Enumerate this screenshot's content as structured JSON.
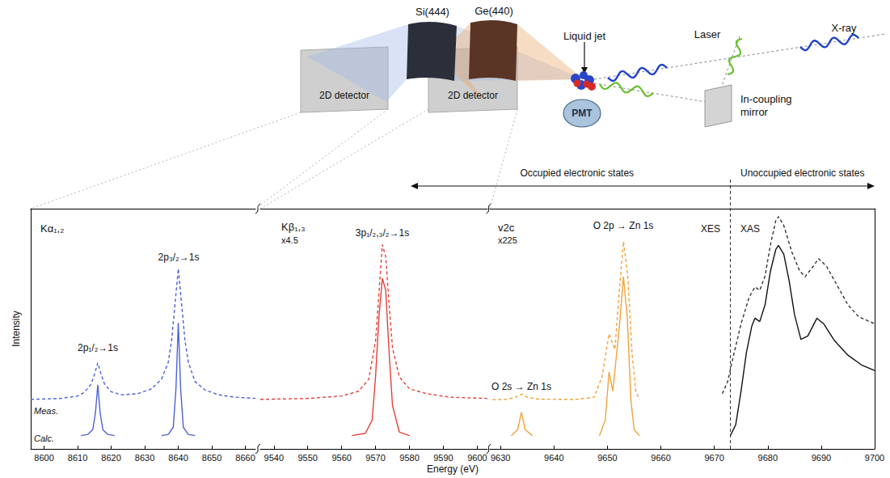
{
  "diagram": {
    "crystals": [
      "Si(444)",
      "Ge(440)"
    ],
    "detectors": [
      "2D detector",
      "2D detector"
    ],
    "sample": "Liquid jet",
    "laser": "Laser",
    "xray": "X-ray",
    "mirror": "In-coupling mirror",
    "pmt": "PMT"
  },
  "chart_data": [
    {
      "type": "line",
      "title": "Kα₁,₂",
      "ylabel": "Intensity",
      "xlim": [
        8596,
        8663
      ],
      "xticks": [
        8600,
        8610,
        8620,
        8630,
        8640,
        8650,
        8660
      ],
      "ylim": [
        0,
        100
      ],
      "yticks": [],
      "tick_labels": "x",
      "grid": false,
      "annotations": [
        "2p₁/₂→1s",
        "2p₃/₂→1s"
      ],
      "series": [
        {
          "name": "Meas.",
          "color": "#4b62d6",
          "line_style": "dashed",
          "x": [
            8596,
            8605,
            8610,
            8612,
            8614,
            8615,
            8616,
            8617,
            8618,
            8620,
            8623,
            8628,
            8632,
            8635,
            8637,
            8638,
            8639,
            8640,
            8641,
            8642,
            8643,
            8645,
            8648,
            8652,
            8657,
            8663
          ],
          "values": [
            20.6,
            21,
            22,
            23.5,
            27,
            31,
            35.8,
            31,
            27,
            23.8,
            22.5,
            23,
            25,
            29,
            36,
            45,
            60,
            75,
            60,
            45,
            36,
            28,
            24.5,
            22.5,
            21.5,
            21
          ]
        },
        {
          "name": "Calc.",
          "color": "#4b62d6",
          "line_style": "solid",
          "x": [
            8611,
            8613,
            8614.5,
            8615.3,
            8616,
            8616.7,
            8617.5,
            8619,
            8621,
            8628,
            8635,
            8637,
            8638.5,
            8639.3,
            8640,
            8640.7,
            8641.5,
            8643,
            8645
          ],
          "values": [
            5.5,
            6,
            8,
            15,
            26.7,
            15,
            8,
            6,
            5.5,
            null,
            5.5,
            6,
            9,
            25,
            52.4,
            25,
            9,
            6,
            5.5
          ]
        }
      ]
    },
    {
      "type": "line",
      "title": "Kβ₁,₃",
      "subtitle": "x4.5",
      "xlabel": "Energy (eV)",
      "xlim": [
        9536,
        9603
      ],
      "xticks": [
        9540,
        9550,
        9560,
        9570,
        9580,
        9590,
        9600
      ],
      "ylim": [
        0,
        100
      ],
      "yticks": [],
      "tick_labels": "x",
      "grid": false,
      "annotations": [
        "3p₁/₂,₃/₂→1s"
      ],
      "series": [
        {
          "color": "#e5403a",
          "line_style": "dashed",
          "x": [
            9536,
            9550,
            9560,
            9565,
            9568,
            9570,
            9571,
            9572,
            9573,
            9574,
            9575,
            9577,
            9580,
            9585,
            9592,
            9603
          ],
          "values": [
            20.6,
            21,
            22,
            24,
            29,
            45,
            65,
            85,
            80,
            60,
            42,
            30,
            25,
            23,
            21.5,
            21
          ]
        },
        {
          "color": "#e5403a",
          "line_style": "solid",
          "x": [
            9563,
            9567,
            9569,
            9570,
            9571,
            9572,
            9573,
            9574,
            9575,
            9577,
            9580
          ],
          "values": [
            5.5,
            6.5,
            12,
            30,
            55,
            71,
            66,
            40,
            18,
            7,
            5.5
          ]
        }
      ]
    },
    {
      "type": "line",
      "title": "v2c",
      "subtitle": "x225",
      "xlim": [
        9628,
        9700
      ],
      "xticks": [
        9630,
        9640,
        9650,
        9660,
        9670,
        9680,
        9690,
        9700
      ],
      "ylim": [
        0,
        100
      ],
      "yticks": [],
      "tick_labels": "x",
      "grid": false,
      "annotations": [
        "O 2p → Zn 1s",
        "O 2s → Zn 1s",
        "XES",
        "XAS"
      ],
      "divider": 9673,
      "divider_labels": [
        "Occupied electronic states",
        "Unoccupied electronic states"
      ],
      "series": [
        {
          "color": "#f2a33a",
          "line_style": "dashed",
          "x": [
            9628.5,
            9631,
            9632.8,
            9633.9,
            9635,
            9637,
            9644,
            9647.5,
            9649,
            9650.3,
            9651.4,
            9652.3,
            9653,
            9653.8,
            9654.6,
            9655.3,
            9656
          ],
          "values": [
            20.5,
            20.6,
            21.5,
            22.8,
            21.5,
            20.7,
            20.6,
            21.5,
            30,
            47.9,
            41.4,
            68,
            86.3,
            72,
            40,
            24,
            20.5
          ]
        },
        {
          "color": "#f2a33a",
          "line_style": "solid",
          "x": [
            9632,
            9633.2,
            9633.9,
            9634.6,
            9636,
            9642,
            9648.5,
            9649.6,
            9650.3,
            9651,
            9652.2,
            9653,
            9653.7,
            9654.4,
            9655,
            9656
          ],
          "values": [
            5.5,
            8,
            15.3,
            8,
            5.5,
            null,
            5.5,
            12,
            32,
            24,
            50,
            71.7,
            55,
            20,
            8,
            5.5
          ]
        },
        {
          "color": "#333333",
          "line_style": "dashed",
          "x": [
            9671.5,
            9672.5,
            9673.5,
            9675,
            9676.5,
            9677.6,
            9678.5,
            9679.5,
            9680.5,
            9681.5,
            9682,
            9683,
            9684.5,
            9686,
            9687,
            9688.5,
            9689.5,
            9691,
            9693,
            9695,
            9697,
            9700
          ],
          "values": [
            23,
            28,
            38,
            52,
            63,
            67.4,
            66,
            72,
            85,
            95,
            96.7,
            93,
            82,
            74,
            71.7,
            76,
            79.2,
            76,
            68,
            60,
            55,
            52.1
          ]
        },
        {
          "color": "#111111",
          "line_style": "solid",
          "x": [
            9673,
            9674,
            9675,
            9676,
            9677,
            9677.6,
            9678.5,
            9679.5,
            9680.5,
            9681.5,
            9682,
            9683,
            9684,
            9685,
            9686.2,
            9687.5,
            9689.2,
            9690.5,
            9692.5,
            9695,
            9697.5,
            9700
          ],
          "values": [
            5.5,
            10,
            24,
            40,
            51,
            54.4,
            53,
            60,
            74,
            83,
            84.7,
            81,
            70,
            56,
            45.6,
            47,
            54.4,
            52,
            45,
            39,
            35,
            32.6
          ]
        }
      ]
    }
  ]
}
